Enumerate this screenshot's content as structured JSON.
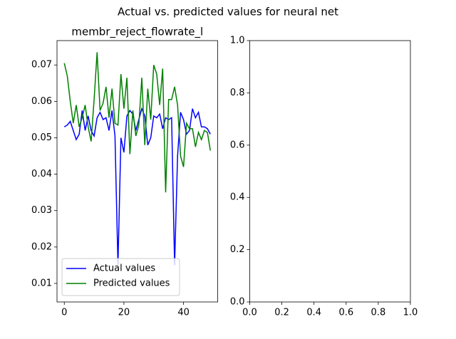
{
  "title": "Actual vs. predicted values for neural net",
  "chart_data": [
    {
      "type": "line",
      "title": "membr_reject_flowrate_l",
      "x": [
        0,
        1,
        2,
        3,
        4,
        5,
        6,
        7,
        8,
        9,
        10,
        11,
        12,
        13,
        14,
        15,
        16,
        17,
        18,
        19,
        20,
        21,
        22,
        23,
        24,
        25,
        26,
        27,
        28,
        29,
        30,
        31,
        32,
        33,
        34,
        35,
        36,
        37,
        38,
        39,
        40,
        41,
        42,
        43,
        44,
        45,
        46,
        47,
        48,
        49
      ],
      "series": [
        {
          "name": "Actual values",
          "color": "#0000ff",
          "values": [
            0.053,
            0.0535,
            0.0545,
            0.052,
            0.0495,
            0.051,
            0.0575,
            0.052,
            0.056,
            0.052,
            0.0505,
            0.0555,
            0.057,
            0.055,
            0.0555,
            0.052,
            0.0575,
            0.0505,
            0.015,
            0.05,
            0.046,
            0.056,
            0.0575,
            0.0565,
            0.052,
            0.055,
            0.058,
            0.056,
            0.048,
            0.05,
            0.056,
            0.0555,
            0.0565,
            0.0525,
            0.0555,
            0.055,
            0.0555,
            0.015,
            0.045,
            0.057,
            0.055,
            0.051,
            0.052,
            0.058,
            0.0555,
            0.057,
            0.053,
            0.053,
            0.0525,
            0.051
          ]
        },
        {
          "name": "Predicted values",
          "color": "#008000",
          "values": [
            0.0705,
            0.067,
            0.06,
            0.054,
            0.059,
            0.053,
            0.0555,
            0.059,
            0.053,
            0.049,
            0.0605,
            0.0735,
            0.0575,
            0.0595,
            0.064,
            0.0555,
            0.0635,
            0.054,
            0.0535,
            0.0675,
            0.058,
            0.0665,
            0.0455,
            0.0575,
            0.0505,
            0.0535,
            0.0665,
            0.048,
            0.0635,
            0.055,
            0.07,
            0.0675,
            0.059,
            0.069,
            0.035,
            0.0605,
            0.0605,
            0.064,
            0.059,
            0.045,
            0.042,
            0.054,
            0.0525,
            0.0525,
            0.0475,
            0.0515,
            0.0495,
            0.052,
            0.0515,
            0.0465
          ]
        }
      ],
      "xlim": [
        -2.45,
        51.45
      ],
      "ylim": [
        0.0049,
        0.0767
      ],
      "xticks": [
        0,
        20,
        40
      ],
      "yticks": [
        0.01,
        0.02,
        0.03,
        0.04,
        0.05,
        0.06,
        0.07
      ],
      "legend": "lower left"
    },
    {
      "type": "line",
      "xlim": [
        0,
        1
      ],
      "ylim": [
        0,
        1
      ],
      "xticks": [
        {
          "value": 0,
          "label": "0.0"
        },
        0.2,
        0.4,
        0.6,
        0.8,
        {
          "value": 1,
          "label": "1.0"
        }
      ],
      "yticks": [
        {
          "value": 0,
          "label": "0.0"
        },
        0.2,
        0.4,
        0.6,
        0.8,
        {
          "value": 1,
          "label": "1.0"
        }
      ]
    }
  ]
}
